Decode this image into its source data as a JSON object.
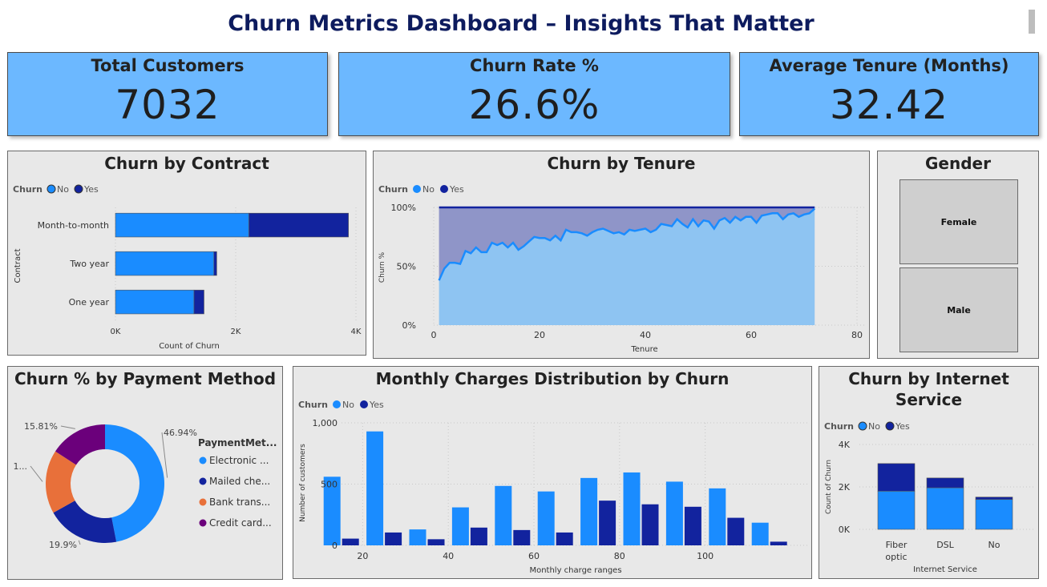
{
  "title": "Churn Metrics Dashboard – Insights That Matter",
  "kpis": [
    {
      "label": "Total Customers",
      "value": "7032"
    },
    {
      "label": "Churn Rate %",
      "value": "26.6%"
    },
    {
      "label": "Average Tenure (Months)",
      "value": "32.42"
    }
  ],
  "colors": {
    "no": "#1a8cff",
    "yes": "#12239e",
    "orange": "#e8703a",
    "purple": "#6b007b"
  },
  "legend": {
    "title": "Churn",
    "no": "No",
    "yes": "Yes"
  },
  "contract": {
    "title": "Churn by Contract",
    "ylabel": "Contract",
    "xlabel": "Count of Churn",
    "categories": [
      "Month-to-month",
      "Two year",
      "One year"
    ],
    "ticks": [
      "0K",
      "2K",
      "4K"
    ]
  },
  "tenure": {
    "title": "Churn by Tenure",
    "ylabel": "Churn %",
    "xlabel": "Tenure",
    "yticks": [
      "100%",
      "50%",
      "0%"
    ],
    "xticks": [
      "0",
      "20",
      "40",
      "60",
      "80"
    ]
  },
  "gender": {
    "title": "Gender",
    "items": [
      "Female",
      "Male"
    ]
  },
  "payment": {
    "title": "Churn % by Payment Method",
    "legend_title": "PaymentMet...",
    "legend_items": [
      "Electronic ...",
      "Mailed che...",
      "Bank trans...",
      "Credit card..."
    ],
    "labels": [
      "46.94%",
      "19.9%",
      "1...",
      "15.81%"
    ]
  },
  "monthly": {
    "title": "Monthly Charges Distribution by Churn",
    "ylabel": "Number of customers",
    "xlabel": "Monthly charge ranges",
    "yticks": [
      "1,000",
      "500",
      "0"
    ],
    "xticks": [
      "20",
      "40",
      "60",
      "80",
      "100"
    ]
  },
  "internet": {
    "title": "Churn by Internet Service",
    "ylabel": "Count of Churn",
    "xlabel": "Internet Service",
    "yticks": [
      "4K",
      "2K",
      "0K"
    ],
    "categories": [
      "Fiber optic",
      "DSL",
      "No"
    ]
  },
  "chart_data": [
    {
      "type": "bar",
      "orientation": "horizontal",
      "stacked": true,
      "title": "Churn by Contract",
      "categories": [
        "Month-to-month",
        "Two year",
        "One year"
      ],
      "series": [
        {
          "name": "No",
          "values": [
            2220,
            1637,
            1307
          ]
        },
        {
          "name": "Yes",
          "values": [
            1655,
            48,
            166
          ]
        }
      ],
      "xlim": [
        0,
        4000
      ],
      "xlabel": "Count of Churn",
      "ylabel": "Contract"
    },
    {
      "type": "area",
      "title": "Churn by Tenure",
      "x": [
        1,
        2,
        3,
        4,
        5,
        6,
        7,
        8,
        9,
        10,
        11,
        12,
        13,
        14,
        15,
        16,
        17,
        18,
        19,
        20,
        21,
        22,
        23,
        24,
        25,
        26,
        27,
        28,
        29,
        30,
        31,
        32,
        33,
        34,
        35,
        36,
        37,
        38,
        39,
        40,
        41,
        42,
        43,
        44,
        45,
        46,
        47,
        48,
        49,
        50,
        51,
        52,
        53,
        54,
        55,
        56,
        57,
        58,
        59,
        60,
        61,
        62,
        63,
        64,
        65,
        66,
        67,
        68,
        69,
        70,
        71,
        72
      ],
      "series": [
        {
          "name": "No",
          "values": [
            38,
            48,
            53,
            53,
            52,
            63,
            61,
            66,
            62,
            62,
            70,
            68,
            70,
            66,
            70,
            64,
            67,
            71,
            75,
            74,
            74,
            72,
            76,
            72,
            81,
            79,
            79,
            78,
            76,
            79,
            81,
            82,
            80,
            78,
            79,
            77,
            81,
            80,
            81,
            82,
            79,
            81,
            86,
            85,
            84,
            90,
            86,
            83,
            90,
            84,
            89,
            88,
            82,
            89,
            91,
            87,
            92,
            89,
            92,
            92,
            87,
            93,
            94,
            95,
            95,
            90,
            94,
            95,
            92,
            94,
            95,
            99
          ]
        },
        {
          "name": "Yes",
          "values": [
            62,
            52,
            47,
            47,
            48,
            37,
            39,
            34,
            38,
            38,
            30,
            32,
            30,
            34,
            30,
            36,
            33,
            29,
            25,
            26,
            26,
            28,
            24,
            28,
            19,
            21,
            21,
            22,
            24,
            21,
            19,
            18,
            20,
            22,
            21,
            23,
            19,
            20,
            19,
            18,
            21,
            19,
            14,
            15,
            16,
            10,
            14,
            17,
            10,
            16,
            11,
            12,
            18,
            11,
            9,
            13,
            8,
            11,
            8,
            8,
            13,
            7,
            6,
            5,
            5,
            10,
            6,
            5,
            8,
            6,
            5,
            1
          ]
        }
      ],
      "stacked": true,
      "ylim": [
        0,
        100
      ],
      "xlim": [
        0,
        80
      ],
      "xlabel": "Tenure",
      "ylabel": "Churn %"
    },
    {
      "type": "pie",
      "donut": true,
      "title": "Churn % by Payment Method",
      "categories": [
        "Electronic ...",
        "Mailed che...",
        "Bank trans...",
        "Credit card..."
      ],
      "values": [
        46.94,
        19.9,
        17.35,
        15.81
      ],
      "legend": "right"
    },
    {
      "type": "bar",
      "title": "Monthly Charges Distribution by Churn",
      "x": [
        15,
        25,
        35,
        45,
        55,
        65,
        75,
        85,
        95,
        105,
        115
      ],
      "series": [
        {
          "name": "No",
          "values": [
            560,
            930,
            130,
            310,
            485,
            440,
            550,
            595,
            520,
            465,
            185
          ]
        },
        {
          "name": "Yes",
          "values": [
            55,
            105,
            50,
            145,
            125,
            105,
            365,
            335,
            315,
            225,
            30
          ]
        }
      ],
      "ylim": [
        0,
        1000
      ],
      "xlabel": "Monthly charge ranges",
      "ylabel": "Number of customers"
    },
    {
      "type": "bar",
      "stacked": true,
      "title": "Churn by Internet Service",
      "categories": [
        "Fiber optic",
        "DSL",
        "No"
      ],
      "series": [
        {
          "name": "No",
          "values": [
            1800,
            1960,
            1410
          ]
        },
        {
          "name": "Yes",
          "values": [
            1300,
            460,
            110
          ]
        }
      ],
      "ylim": [
        0,
        4000
      ],
      "xlabel": "Internet Service",
      "ylabel": "Count of Churn"
    }
  ]
}
